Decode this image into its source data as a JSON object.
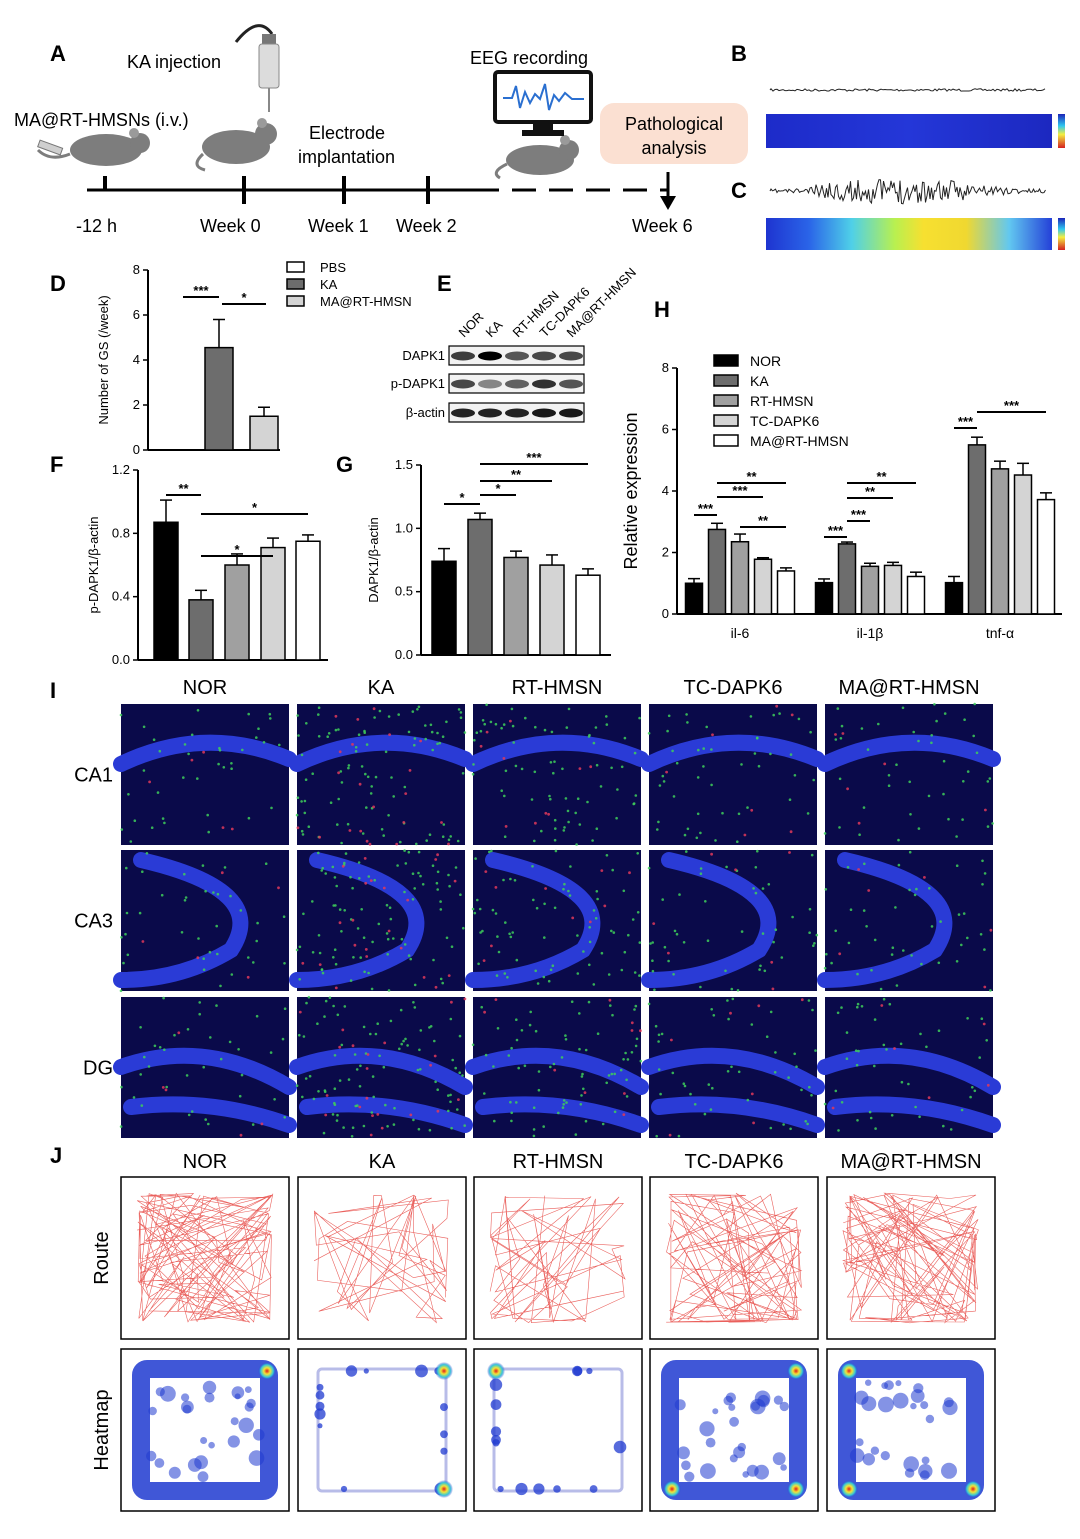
{
  "panels": {
    "A": "A",
    "B": "B",
    "C": "C",
    "D": "D",
    "E": "E",
    "F": "F",
    "G": "G",
    "H": "H",
    "I": "I",
    "J": "J"
  },
  "timeline": {
    "ka_injection": "KA injection",
    "ma_injection": "MA@RT-HMSNs (i.v.)",
    "electrode_line1": "Electrode",
    "electrode_line2": "implantation",
    "eeg": "EEG recording",
    "pathology_line1": "Pathological",
    "pathology_line2": "analysis",
    "ticks": [
      "-12 h",
      "Week 0",
      "Week 1",
      "Week 2",
      "Week 6"
    ]
  },
  "groups": [
    "NOR",
    "KA",
    "RT-HMSN",
    "TC-DAPK6",
    "MA@RT-HMSN"
  ],
  "blot": {
    "lanes": [
      "NOR",
      "KA",
      "RT-HMSN",
      "TC-DAPK6",
      "MA@RT-HMSN"
    ],
    "rows": [
      "DAPK1",
      "p-DAPK1",
      "β-actin"
    ]
  },
  "i_rows": [
    "CA1",
    "CA3",
    "DG"
  ],
  "j_rows": [
    "Route",
    "Heatmap"
  ],
  "chart_data": [
    {
      "panel": "D",
      "type": "bar",
      "ylabel": "Number of GS (/week)",
      "ylim": [
        0,
        8
      ],
      "yticks": [
        "0",
        "2",
        "4",
        "6",
        "8"
      ],
      "categories": [
        "PBS",
        "KA",
        "MA@RT-HMSN"
      ],
      "legend": [
        "PBS",
        "KA",
        "MA@RT-HMSN"
      ],
      "values": [
        0,
        4.55,
        1.5
      ],
      "errors": [
        0,
        1.25,
        0.4
      ],
      "colors": [
        "#ffffff",
        "#6d6d6d",
        "#d4d4d4"
      ],
      "sig": [
        "***",
        "*"
      ]
    },
    {
      "panel": "F",
      "type": "bar",
      "ylabel": "p-DAPK1/β-actin",
      "ylim": [
        0,
        1.2
      ],
      "yticks": [
        "0.0",
        "0.4",
        "0.8",
        "1.2"
      ],
      "categories": [
        "NOR",
        "KA",
        "RT-HMSN",
        "TC-DAPK6",
        "MA@RT-HMSN"
      ],
      "values": [
        0.87,
        0.38,
        0.6,
        0.71,
        0.75
      ],
      "errors": [
        0.14,
        0.06,
        0.07,
        0.06,
        0.04
      ],
      "sig": [
        "**",
        "*",
        "*"
      ]
    },
    {
      "panel": "G",
      "type": "bar",
      "ylabel": "DAPK1/β-actin",
      "ylim": [
        0,
        1.5
      ],
      "yticks": [
        "0.0",
        "0.5",
        "1.0",
        "1.5"
      ],
      "categories": [
        "NOR",
        "KA",
        "RT-HMSN",
        "TC-DAPK6",
        "MA@RT-HMSN"
      ],
      "values": [
        0.74,
        1.07,
        0.77,
        0.71,
        0.63
      ],
      "errors": [
        0.1,
        0.05,
        0.05,
        0.08,
        0.05
      ],
      "sig": [
        "*",
        "*",
        "**",
        "***"
      ]
    },
    {
      "panel": "H",
      "type": "bar",
      "ylabel": "Relative expression",
      "ylim": [
        0,
        8
      ],
      "yticks": [
        "0",
        "2",
        "4",
        "6",
        "8"
      ],
      "categories": [
        "il-6",
        "il-1β",
        "tnf-α"
      ],
      "series": [
        {
          "name": "NOR",
          "values": [
            1.0,
            1.02,
            1.02
          ],
          "errors": [
            0.15,
            0.12,
            0.2
          ]
        },
        {
          "name": "KA",
          "values": [
            2.75,
            2.28,
            5.5
          ],
          "errors": [
            0.2,
            0.06,
            0.25
          ]
        },
        {
          "name": "RT-HMSN",
          "values": [
            2.35,
            1.55,
            4.72
          ],
          "errors": [
            0.25,
            0.1,
            0.25
          ]
        },
        {
          "name": "TC-DAPK6",
          "values": [
            1.78,
            1.58,
            4.52
          ],
          "errors": [
            0.05,
            0.1,
            0.38
          ]
        },
        {
          "name": "MA@RT-HMSN",
          "values": [
            1.4,
            1.22,
            3.72
          ],
          "errors": [
            0.1,
            0.14,
            0.22
          ]
        }
      ],
      "sig": [
        "***",
        "**",
        "***",
        "**",
        "***",
        "**",
        "**",
        "***",
        "***",
        "***"
      ]
    }
  ],
  "colors": {
    "nor": "#000000",
    "ka": "#6d6d6d",
    "rt": "#a0a0a0",
    "tc": "#d4d4d4",
    "ma": "#ffffff",
    "route": "#e53935",
    "microscopy_bg": "#0a0a4a",
    "nuclei": "#2a3bd6",
    "pathology_box": "#fbe0d2"
  }
}
